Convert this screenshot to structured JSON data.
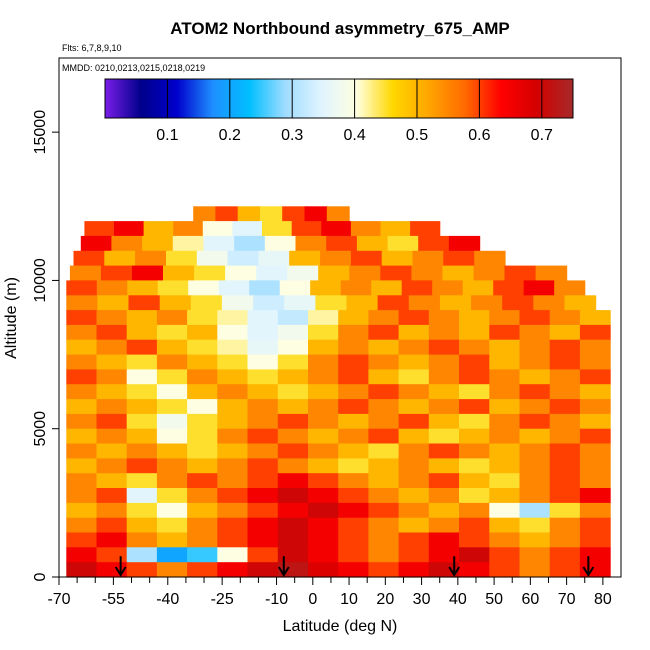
{
  "chart_data": {
    "type": "heatmap",
    "title": "ATOM2 Northbound asymmetry_675_AMP",
    "flights_note": "Flts: 6,7,8,9,10",
    "dates_note": "MMDD: 0210,0213,0215,0218,0219",
    "xlabel": "Latitude (deg N)",
    "ylabel": "Altitude (m)",
    "xlim": [
      -70,
      85
    ],
    "ylim": [
      0,
      17500
    ],
    "x_ticks": [
      -70,
      -55,
      -40,
      -25,
      -10,
      0,
      10,
      20,
      30,
      40,
      50,
      60,
      70,
      80
    ],
    "x_tick_labels": [
      "-70",
      "-55",
      "-40",
      "-25",
      "-10",
      "0",
      "10",
      "20",
      "30",
      "40",
      "50",
      "60",
      "70",
      "80"
    ],
    "x_minor_ticks": [
      -65,
      -60,
      -50,
      -45,
      -35,
      -30,
      -20,
      -15,
      -5,
      5,
      15,
      25,
      35,
      45,
      55,
      65,
      75
    ],
    "y_ticks": [
      0,
      5000,
      10000,
      15000
    ],
    "y_tick_labels": [
      "0",
      "5000",
      "10000",
      "15000"
    ],
    "colorbar": {
      "range": [
        0.0,
        0.75
      ],
      "ticks": [
        0.1,
        0.2,
        0.3,
        0.4,
        0.5,
        0.6,
        0.7
      ],
      "tick_labels": [
        "0.1",
        "0.2",
        "0.3",
        "0.4",
        "0.5",
        "0.6",
        "0.7"
      ],
      "colors": [
        "#7a1de8",
        "#00008b",
        "#0000cd",
        "#1e90ff",
        "#00bfff",
        "#9fdcff",
        "#e0f4ff",
        "#ffffe0",
        "#ffd700",
        "#ffa500",
        "#ff6a00",
        "#ff0000",
        "#d40000",
        "#a52a2a"
      ]
    },
    "rows": [
      {
        "alt": 12000,
        "lat_start": -33,
        "lat_end": 10,
        "values": [
          0.55,
          0.6,
          0.5,
          0.45,
          0.6,
          0.65,
          0.55
        ]
      },
      {
        "alt": 11500,
        "lat_start": -63,
        "lat_end": 35,
        "values": [
          0.6,
          0.65,
          0.5,
          0.55,
          0.4,
          0.35,
          0.45,
          0.6,
          0.65,
          0.55,
          0.5,
          0.6
        ]
      },
      {
        "alt": 11000,
        "lat_start": -64,
        "lat_end": 46,
        "values": [
          0.65,
          0.55,
          0.5,
          0.42,
          0.35,
          0.3,
          0.4,
          0.55,
          0.6,
          0.5,
          0.45,
          0.6,
          0.65
        ]
      },
      {
        "alt": 10500,
        "lat_start": -66,
        "lat_end": 53,
        "values": [
          0.6,
          0.5,
          0.55,
          0.45,
          0.38,
          0.33,
          0.36,
          0.5,
          0.55,
          0.6,
          0.5,
          0.55,
          0.6,
          0.55
        ]
      },
      {
        "alt": 10000,
        "lat_start": -67,
        "lat_end": 70,
        "values": [
          0.55,
          0.6,
          0.65,
          0.5,
          0.45,
          0.4,
          0.35,
          0.38,
          0.5,
          0.55,
          0.6,
          0.55,
          0.5,
          0.55,
          0.6,
          0.55
        ]
      },
      {
        "alt": 9500,
        "lat_start": -68,
        "lat_end": 75,
        "values": [
          0.6,
          0.55,
          0.5,
          0.45,
          0.4,
          0.35,
          0.3,
          0.4,
          0.5,
          0.55,
          0.5,
          0.6,
          0.55,
          0.5,
          0.6,
          0.65,
          0.55
        ]
      },
      {
        "alt": 9000,
        "lat_start": -68,
        "lat_end": 78,
        "values": [
          0.55,
          0.5,
          0.6,
          0.5,
          0.45,
          0.38,
          0.33,
          0.36,
          0.45,
          0.5,
          0.6,
          0.55,
          0.5,
          0.55,
          0.6,
          0.55,
          0.5
        ]
      },
      {
        "alt": 8500,
        "lat_start": -68,
        "lat_end": 82,
        "values": [
          0.6,
          0.55,
          0.5,
          0.55,
          0.45,
          0.42,
          0.35,
          0.32,
          0.42,
          0.5,
          0.55,
          0.6,
          0.55,
          0.5,
          0.55,
          0.6,
          0.55,
          0.5
        ]
      },
      {
        "alt": 8000,
        "lat_start": -68,
        "lat_end": 82,
        "values": [
          0.55,
          0.6,
          0.5,
          0.45,
          0.5,
          0.4,
          0.35,
          0.38,
          0.45,
          0.55,
          0.6,
          0.5,
          0.55,
          0.5,
          0.6,
          0.55,
          0.5,
          0.6
        ]
      },
      {
        "alt": 7500,
        "lat_start": -68,
        "lat_end": 82,
        "values": [
          0.5,
          0.55,
          0.6,
          0.5,
          0.45,
          0.42,
          0.36,
          0.4,
          0.5,
          0.55,
          0.5,
          0.55,
          0.6,
          0.55,
          0.5,
          0.55,
          0.6,
          0.55
        ]
      },
      {
        "alt": 7000,
        "lat_start": -68,
        "lat_end": 82,
        "values": [
          0.55,
          0.5,
          0.45,
          0.55,
          0.5,
          0.45,
          0.4,
          0.45,
          0.55,
          0.6,
          0.55,
          0.5,
          0.55,
          0.6,
          0.5,
          0.55,
          0.6,
          0.55
        ]
      },
      {
        "alt": 6500,
        "lat_start": -68,
        "lat_end": 82,
        "values": [
          0.6,
          0.55,
          0.4,
          0.45,
          0.55,
          0.5,
          0.45,
          0.5,
          0.55,
          0.6,
          0.5,
          0.45,
          0.55,
          0.6,
          0.55,
          0.5,
          0.55,
          0.6
        ]
      },
      {
        "alt": 6000,
        "lat_start": -68,
        "lat_end": 82,
        "values": [
          0.55,
          0.5,
          0.45,
          0.4,
          0.5,
          0.55,
          0.5,
          0.45,
          0.5,
          0.55,
          0.6,
          0.55,
          0.5,
          0.45,
          0.55,
          0.6,
          0.55,
          0.5
        ]
      },
      {
        "alt": 5500,
        "lat_start": -68,
        "lat_end": 82,
        "values": [
          0.5,
          0.55,
          0.5,
          0.45,
          0.4,
          0.5,
          0.55,
          0.5,
          0.55,
          0.6,
          0.55,
          0.5,
          0.55,
          0.6,
          0.5,
          0.55,
          0.6,
          0.55
        ]
      },
      {
        "alt": 5000,
        "lat_start": -68,
        "lat_end": 82,
        "values": [
          0.55,
          0.6,
          0.45,
          0.38,
          0.45,
          0.5,
          0.55,
          0.6,
          0.55,
          0.5,
          0.55,
          0.6,
          0.5,
          0.45,
          0.55,
          0.6,
          0.55,
          0.5
        ]
      },
      {
        "alt": 4500,
        "lat_start": -68,
        "lat_end": 82,
        "values": [
          0.5,
          0.55,
          0.5,
          0.4,
          0.45,
          0.55,
          0.6,
          0.55,
          0.5,
          0.55,
          0.6,
          0.5,
          0.45,
          0.5,
          0.55,
          0.5,
          0.55,
          0.6
        ]
      },
      {
        "alt": 4000,
        "lat_start": -68,
        "lat_end": 82,
        "values": [
          0.55,
          0.5,
          0.55,
          0.5,
          0.45,
          0.5,
          0.55,
          0.6,
          0.55,
          0.5,
          0.45,
          0.55,
          0.6,
          0.55,
          0.5,
          0.55,
          0.6,
          0.55
        ]
      },
      {
        "alt": 3500,
        "lat_start": -68,
        "lat_end": 82,
        "values": [
          0.5,
          0.55,
          0.6,
          0.55,
          0.5,
          0.55,
          0.6,
          0.55,
          0.5,
          0.45,
          0.5,
          0.55,
          0.5,
          0.45,
          0.5,
          0.55,
          0.6,
          0.55
        ]
      },
      {
        "alt": 3000,
        "lat_start": -68,
        "lat_end": 82,
        "values": [
          0.55,
          0.5,
          0.45,
          0.55,
          0.6,
          0.55,
          0.6,
          0.65,
          0.6,
          0.55,
          0.5,
          0.55,
          0.6,
          0.5,
          0.45,
          0.55,
          0.6,
          0.55
        ]
      },
      {
        "alt": 2500,
        "lat_start": -68,
        "lat_end": 82,
        "values": [
          0.55,
          0.6,
          0.35,
          0.45,
          0.55,
          0.6,
          0.65,
          0.7,
          0.65,
          0.6,
          0.55,
          0.5,
          0.55,
          0.45,
          0.5,
          0.55,
          0.6,
          0.65
        ]
      },
      {
        "alt": 2000,
        "lat_start": -68,
        "lat_end": 82,
        "values": [
          0.5,
          0.55,
          0.45,
          0.4,
          0.5,
          0.55,
          0.6,
          0.65,
          0.7,
          0.65,
          0.6,
          0.55,
          0.5,
          0.55,
          0.4,
          0.3,
          0.45,
          0.55
        ]
      },
      {
        "alt": 1500,
        "lat_start": -68,
        "lat_end": 82,
        "values": [
          0.55,
          0.6,
          0.5,
          0.45,
          0.55,
          0.6,
          0.65,
          0.7,
          0.65,
          0.6,
          0.55,
          0.5,
          0.55,
          0.6,
          0.5,
          0.45,
          0.55,
          0.6
        ]
      },
      {
        "alt": 1000,
        "lat_start": -68,
        "lat_end": 82,
        "values": [
          0.6,
          0.65,
          0.55,
          0.5,
          0.55,
          0.6,
          0.65,
          0.7,
          0.65,
          0.6,
          0.55,
          0.6,
          0.65,
          0.6,
          0.55,
          0.5,
          0.55,
          0.6
        ]
      },
      {
        "alt": 500,
        "lat_start": -68,
        "lat_end": 82,
        "values": [
          0.65,
          0.6,
          0.3,
          0.2,
          0.25,
          0.4,
          0.6,
          0.7,
          0.65,
          0.6,
          0.55,
          0.6,
          0.65,
          0.7,
          0.6,
          0.55,
          0.6,
          0.65
        ]
      },
      {
        "alt": 0,
        "lat_start": -68,
        "lat_end": 82,
        "values": [
          0.7,
          0.65,
          0.6,
          0.55,
          0.6,
          0.65,
          0.7,
          0.72,
          0.68,
          0.65,
          0.6,
          0.65,
          0.7,
          0.65,
          0.6,
          0.55,
          0.6,
          0.65
        ]
      }
    ],
    "arrow_latitudes": [
      -53,
      -8,
      39,
      76
    ]
  }
}
